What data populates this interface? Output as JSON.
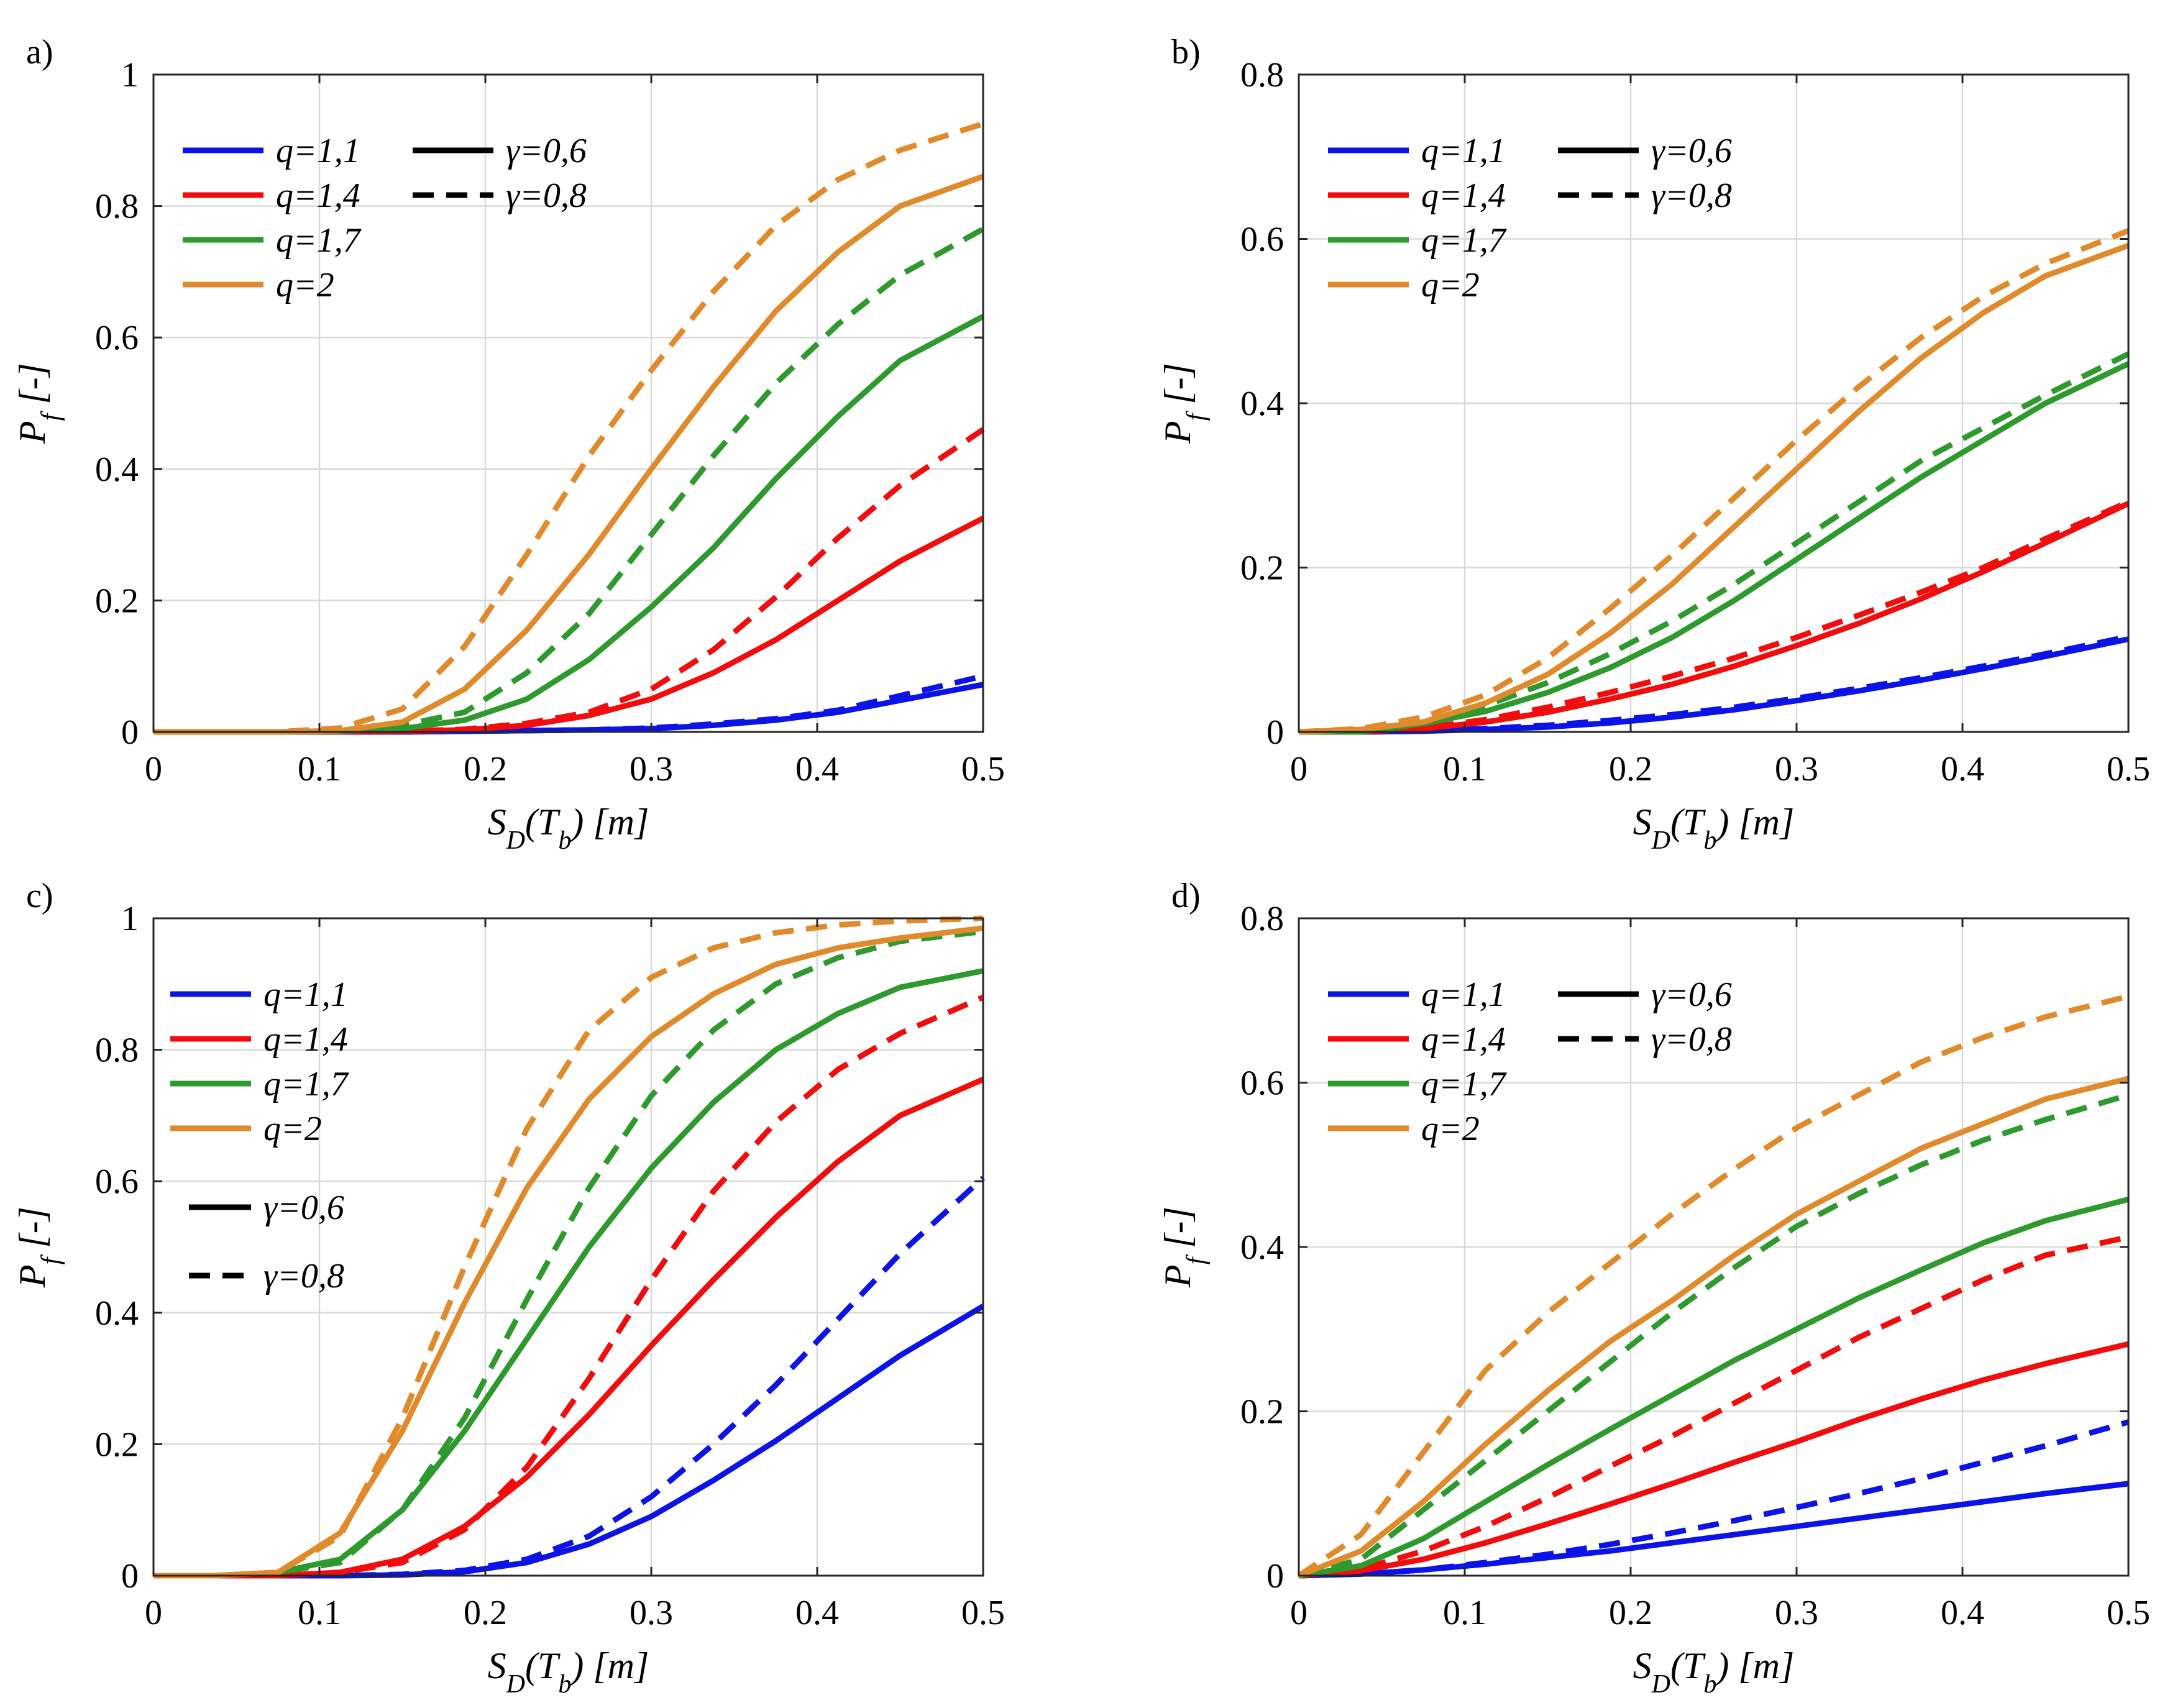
{
  "colors": {
    "q=1,1": "#0b13e6",
    "q=1,4": "#f20c0c",
    "q=1,7": "#2e9a2e",
    "q=2": "#e08a2c"
  },
  "chart_data": [
    {
      "type": "line",
      "panel_label": "a)",
      "xlabel": "S_D(T_b) [m]",
      "ylabel": "P_f [-]",
      "xlim": [
        0,
        0.5
      ],
      "ylim": [
        0,
        1
      ],
      "xticks": [
        "0",
        "0.1",
        "0.2",
        "0.3",
        "0.4",
        "0.5"
      ],
      "yticks": [
        "0",
        "0.2",
        "0.4",
        "0.6",
        "0.8",
        "1"
      ],
      "grid": true,
      "legend_placement": "top-left",
      "legend_entries": [
        "q=1,1",
        "q=1,4",
        "q=1,7",
        "q=2"
      ],
      "style_legend_entries": [
        "γ=0,6",
        "γ=0,8"
      ],
      "legend_layout": "two-column",
      "x": [
        0,
        0.0375,
        0.075,
        0.1125,
        0.15,
        0.1875,
        0.225,
        0.2625,
        0.3,
        0.3375,
        0.375,
        0.4125,
        0.45,
        0.5
      ],
      "series": [
        {
          "name": "q=1,1",
          "style": "γ=0,6",
          "values": [
            0,
            0,
            0,
            0,
            0,
            0.001,
            0.002,
            0.003,
            0.005,
            0.01,
            0.018,
            0.03,
            0.048,
            0.072
          ]
        },
        {
          "name": "q=1,1",
          "style": "γ=0,8",
          "values": [
            0,
            0,
            0,
            0,
            0,
            0.001,
            0.002,
            0.003,
            0.006,
            0.012,
            0.02,
            0.033,
            0.055,
            0.085
          ]
        },
        {
          "name": "q=1,4",
          "style": "γ=0,6",
          "values": [
            0,
            0,
            0,
            0,
            0.001,
            0.003,
            0.01,
            0.025,
            0.05,
            0.09,
            0.14,
            0.2,
            0.26,
            0.325
          ]
        },
        {
          "name": "q=1,4",
          "style": "γ=0,8",
          "values": [
            0,
            0,
            0,
            0,
            0.001,
            0.004,
            0.013,
            0.03,
            0.065,
            0.125,
            0.205,
            0.295,
            0.375,
            0.46
          ]
        },
        {
          "name": "q=1,7",
          "style": "γ=0,6",
          "values": [
            0,
            0,
            0,
            0.001,
            0.005,
            0.018,
            0.05,
            0.11,
            0.19,
            0.28,
            0.385,
            0.48,
            0.565,
            0.632
          ]
        },
        {
          "name": "q=1,7",
          "style": "γ=0,8",
          "values": [
            0,
            0,
            0,
            0.002,
            0.01,
            0.03,
            0.09,
            0.18,
            0.3,
            0.42,
            0.53,
            0.62,
            0.695,
            0.765
          ]
        },
        {
          "name": "q=2",
          "style": "γ=0,6",
          "values": [
            0,
            0,
            0,
            0.002,
            0.015,
            0.065,
            0.155,
            0.27,
            0.4,
            0.525,
            0.64,
            0.73,
            0.8,
            0.845
          ]
        },
        {
          "name": "q=2",
          "style": "γ=0,8",
          "values": [
            0,
            0,
            0,
            0.006,
            0.035,
            0.13,
            0.27,
            0.42,
            0.55,
            0.67,
            0.77,
            0.84,
            0.885,
            0.925
          ]
        }
      ]
    },
    {
      "type": "line",
      "panel_label": "b)",
      "xlabel": "S_D(T_b) [m]",
      "ylabel": "P_f [-]",
      "xlim": [
        0,
        0.5
      ],
      "ylim": [
        0,
        0.8
      ],
      "xticks": [
        "0",
        "0.1",
        "0.2",
        "0.3",
        "0.4",
        "0.5"
      ],
      "yticks": [
        "0",
        "0.2",
        "0.4",
        "0.6",
        "0.8"
      ],
      "grid": true,
      "legend_placement": "top-left",
      "legend_entries": [
        "q=1,1",
        "q=1,4",
        "q=1,7",
        "q=2"
      ],
      "style_legend_entries": [
        "γ=0,6",
        "γ=0,8"
      ],
      "legend_layout": "two-column",
      "x": [
        0,
        0.0375,
        0.075,
        0.1125,
        0.15,
        0.1875,
        0.225,
        0.2625,
        0.3,
        0.3375,
        0.375,
        0.4125,
        0.45,
        0.5
      ],
      "series": [
        {
          "name": "q=1,1",
          "style": "γ=0,6",
          "values": [
            0,
            0,
            0.001,
            0.003,
            0.006,
            0.011,
            0.018,
            0.027,
            0.038,
            0.05,
            0.063,
            0.077,
            0.092,
            0.113
          ]
        },
        {
          "name": "q=1,1",
          "style": "γ=0,8",
          "values": [
            0,
            0,
            0.001,
            0.004,
            0.008,
            0.014,
            0.021,
            0.03,
            0.041,
            0.053,
            0.066,
            0.08,
            0.095,
            0.116
          ]
        },
        {
          "name": "q=1,4",
          "style": "γ=0,6",
          "values": [
            0,
            0,
            0.004,
            0.012,
            0.024,
            0.04,
            0.058,
            0.08,
            0.105,
            0.132,
            0.162,
            0.195,
            0.23,
            0.278
          ]
        },
        {
          "name": "q=1,4",
          "style": "γ=0,8",
          "values": [
            0,
            0,
            0.005,
            0.015,
            0.03,
            0.048,
            0.068,
            0.09,
            0.115,
            0.142,
            0.17,
            0.2,
            0.235,
            0.28
          ]
        },
        {
          "name": "q=1,7",
          "style": "γ=0,6",
          "values": [
            0,
            0,
            0.01,
            0.025,
            0.048,
            0.078,
            0.115,
            0.16,
            0.21,
            0.26,
            0.31,
            0.355,
            0.4,
            0.448
          ]
        },
        {
          "name": "q=1,7",
          "style": "γ=0,8",
          "values": [
            0,
            0,
            0.012,
            0.032,
            0.06,
            0.095,
            0.135,
            0.18,
            0.23,
            0.28,
            0.33,
            0.37,
            0.41,
            0.46
          ]
        },
        {
          "name": "q=2",
          "style": "γ=0,6",
          "values": [
            0,
            0.003,
            0.012,
            0.035,
            0.07,
            0.12,
            0.18,
            0.25,
            0.32,
            0.39,
            0.455,
            0.51,
            0.555,
            0.592
          ]
        },
        {
          "name": "q=2",
          "style": "γ=0,8",
          "values": [
            0,
            0.004,
            0.018,
            0.045,
            0.09,
            0.15,
            0.215,
            0.285,
            0.355,
            0.42,
            0.48,
            0.53,
            0.57,
            0.61
          ]
        }
      ]
    },
    {
      "type": "line",
      "panel_label": "c)",
      "xlabel": "S_D(T_b) [m]",
      "ylabel": "P_f [-]",
      "xlim": [
        0,
        0.5
      ],
      "ylim": [
        0,
        1
      ],
      "xticks": [
        "0",
        "0.1",
        "0.2",
        "0.3",
        "0.4",
        "0.5"
      ],
      "yticks": [
        "0",
        "0.2",
        "0.4",
        "0.6",
        "0.8",
        "1"
      ],
      "grid": true,
      "legend_placement": "top-left",
      "legend_entries": [
        "q=1,1",
        "q=1,4",
        "q=1,7",
        "q=2"
      ],
      "style_legend_entries": [
        "γ=0,6",
        "γ=0,8"
      ],
      "legend_layout": "stacked",
      "x": [
        0,
        0.0375,
        0.075,
        0.1125,
        0.15,
        0.1875,
        0.225,
        0.2625,
        0.3,
        0.3375,
        0.375,
        0.4125,
        0.45,
        0.5
      ],
      "series": [
        {
          "name": "q=1,1",
          "style": "γ=0,6",
          "values": [
            0,
            0,
            0,
            0,
            0.001,
            0.006,
            0.02,
            0.048,
            0.09,
            0.145,
            0.205,
            0.27,
            0.335,
            0.41
          ]
        },
        {
          "name": "q=1,1",
          "style": "γ=0,8",
          "values": [
            0,
            0,
            0,
            0,
            0.002,
            0.008,
            0.025,
            0.06,
            0.12,
            0.2,
            0.29,
            0.39,
            0.49,
            0.605
          ]
        },
        {
          "name": "q=1,4",
          "style": "γ=0,6",
          "values": [
            0,
            0,
            0,
            0.005,
            0.025,
            0.075,
            0.15,
            0.245,
            0.35,
            0.45,
            0.545,
            0.63,
            0.7,
            0.755
          ]
        },
        {
          "name": "q=1,4",
          "style": "γ=0,8",
          "values": [
            0,
            0,
            0,
            0.005,
            0.02,
            0.07,
            0.165,
            0.3,
            0.45,
            0.585,
            0.69,
            0.77,
            0.825,
            0.88
          ]
        },
        {
          "name": "q=1,7",
          "style": "γ=0,6",
          "values": [
            0,
            0,
            0.005,
            0.025,
            0.1,
            0.22,
            0.36,
            0.5,
            0.62,
            0.72,
            0.8,
            0.855,
            0.895,
            0.92
          ]
        },
        {
          "name": "q=1,7",
          "style": "γ=0,8",
          "values": [
            0,
            0,
            0.005,
            0.02,
            0.1,
            0.24,
            0.42,
            0.59,
            0.73,
            0.83,
            0.9,
            0.94,
            0.965,
            0.98
          ]
        },
        {
          "name": "q=2",
          "style": "γ=0,6",
          "values": [
            0,
            0,
            0.005,
            0.065,
            0.22,
            0.415,
            0.59,
            0.725,
            0.82,
            0.885,
            0.93,
            0.955,
            0.97,
            0.985
          ]
        },
        {
          "name": "q=2",
          "style": "γ=0,8",
          "values": [
            0,
            0,
            0.005,
            0.06,
            0.24,
            0.47,
            0.68,
            0.83,
            0.91,
            0.955,
            0.978,
            0.99,
            0.996,
            1.0
          ]
        }
      ]
    },
    {
      "type": "line",
      "panel_label": "d)",
      "xlabel": "S_D(T_b) [m]",
      "ylabel": "P_f [-]",
      "xlim": [
        0,
        0.5
      ],
      "ylim": [
        0,
        0.8
      ],
      "xticks": [
        "0",
        "0.1",
        "0.2",
        "0.3",
        "0.4",
        "0.5"
      ],
      "yticks": [
        "0",
        "0.2",
        "0.4",
        "0.6",
        "0.8"
      ],
      "grid": true,
      "legend_placement": "top-left",
      "legend_entries": [
        "q=1,1",
        "q=1,4",
        "q=1,7",
        "q=2"
      ],
      "style_legend_entries": [
        "γ=0,6",
        "γ=0,8"
      ],
      "legend_layout": "two-column",
      "x": [
        0,
        0.0375,
        0.075,
        0.1125,
        0.15,
        0.1875,
        0.225,
        0.2625,
        0.3,
        0.3375,
        0.375,
        0.4125,
        0.45,
        0.5
      ],
      "series": [
        {
          "name": "q=1,1",
          "style": "γ=0,6",
          "values": [
            0,
            0.002,
            0.007,
            0.014,
            0.022,
            0.03,
            0.04,
            0.05,
            0.06,
            0.07,
            0.08,
            0.09,
            0.1,
            0.112
          ]
        },
        {
          "name": "q=1,1",
          "style": "γ=0,8",
          "values": [
            0,
            0.002,
            0.007,
            0.016,
            0.026,
            0.038,
            0.052,
            0.067,
            0.083,
            0.1,
            0.118,
            0.138,
            0.158,
            0.187
          ]
        },
        {
          "name": "q=1,4",
          "style": "γ=0,6",
          "values": [
            0,
            0.006,
            0.02,
            0.04,
            0.063,
            0.087,
            0.112,
            0.138,
            0.163,
            0.19,
            0.215,
            0.238,
            0.258,
            0.282
          ]
        },
        {
          "name": "q=1,4",
          "style": "γ=0,8",
          "values": [
            0,
            0.008,
            0.03,
            0.06,
            0.095,
            0.133,
            0.17,
            0.21,
            0.25,
            0.29,
            0.325,
            0.36,
            0.39,
            0.412
          ]
        },
        {
          "name": "q=1,7",
          "style": "γ=0,6",
          "values": [
            0,
            0.012,
            0.045,
            0.09,
            0.135,
            0.178,
            0.22,
            0.262,
            0.3,
            0.338,
            0.372,
            0.405,
            0.432,
            0.458
          ]
        },
        {
          "name": "q=1,7",
          "style": "γ=0,8",
          "values": [
            0,
            0.02,
            0.08,
            0.14,
            0.2,
            0.26,
            0.32,
            0.375,
            0.425,
            0.465,
            0.5,
            0.53,
            0.555,
            0.585
          ]
        },
        {
          "name": "q=2",
          "style": "γ=0,6",
          "values": [
            0,
            0.03,
            0.09,
            0.16,
            0.225,
            0.285,
            0.335,
            0.39,
            0.44,
            0.48,
            0.52,
            0.55,
            0.58,
            0.605
          ]
        },
        {
          "name": "q=2",
          "style": "γ=0,8",
          "values": [
            0,
            0.05,
            0.15,
            0.25,
            0.32,
            0.38,
            0.44,
            0.495,
            0.545,
            0.585,
            0.625,
            0.655,
            0.68,
            0.705
          ]
        }
      ]
    }
  ]
}
